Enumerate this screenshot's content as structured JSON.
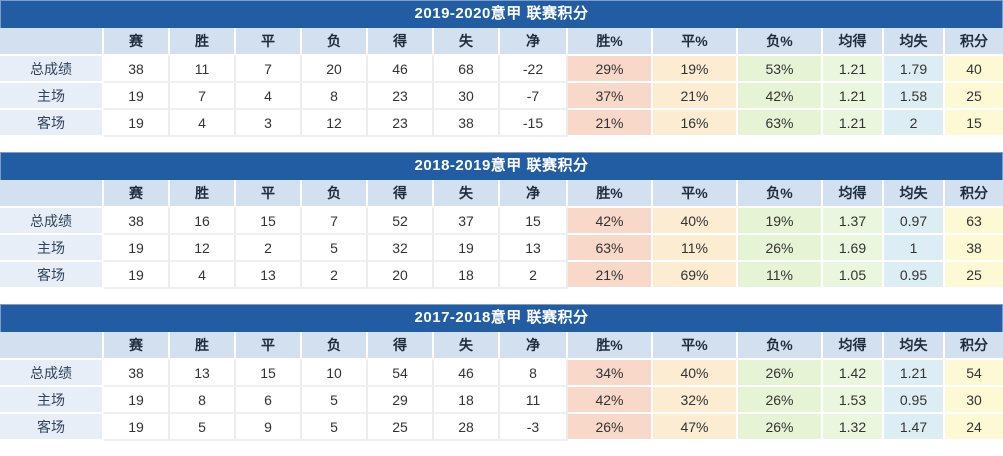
{
  "columns": [
    "",
    "赛",
    "胜",
    "平",
    "负",
    "得",
    "失",
    "净",
    "胜%",
    "平%",
    "负%",
    "均得",
    "均失",
    "积分"
  ],
  "tables": [
    {
      "title": "2019-2020意甲 联赛积分",
      "rows": [
        {
          "label": "总成绩",
          "values": [
            "38",
            "11",
            "7",
            "20",
            "46",
            "68",
            "-22",
            "29%",
            "19%",
            "53%",
            "1.21",
            "1.79",
            "40"
          ]
        },
        {
          "label": "主场",
          "values": [
            "19",
            "7",
            "4",
            "8",
            "23",
            "30",
            "-7",
            "37%",
            "21%",
            "42%",
            "1.21",
            "1.58",
            "25"
          ]
        },
        {
          "label": "客场",
          "values": [
            "19",
            "4",
            "3",
            "12",
            "23",
            "38",
            "-15",
            "21%",
            "16%",
            "63%",
            "1.21",
            "2",
            "15"
          ]
        }
      ]
    },
    {
      "title": "2018-2019意甲 联赛积分",
      "rows": [
        {
          "label": "总成绩",
          "values": [
            "38",
            "16",
            "15",
            "7",
            "52",
            "37",
            "15",
            "42%",
            "40%",
            "19%",
            "1.37",
            "0.97",
            "63"
          ]
        },
        {
          "label": "主场",
          "values": [
            "19",
            "12",
            "2",
            "5",
            "32",
            "19",
            "13",
            "63%",
            "11%",
            "26%",
            "1.69",
            "1",
            "38"
          ]
        },
        {
          "label": "客场",
          "values": [
            "19",
            "4",
            "13",
            "2",
            "20",
            "18",
            "2",
            "21%",
            "69%",
            "11%",
            "1.05",
            "0.95",
            "25"
          ]
        }
      ]
    },
    {
      "title": "2017-2018意甲 联赛积分",
      "rows": [
        {
          "label": "总成绩",
          "values": [
            "38",
            "13",
            "15",
            "10",
            "54",
            "46",
            "8",
            "34%",
            "40%",
            "26%",
            "1.42",
            "1.21",
            "54"
          ]
        },
        {
          "label": "主场",
          "values": [
            "19",
            "8",
            "6",
            "5",
            "29",
            "18",
            "11",
            "42%",
            "32%",
            "26%",
            "1.53",
            "0.95",
            "30"
          ]
        },
        {
          "label": "客场",
          "values": [
            "19",
            "5",
            "9",
            "5",
            "25",
            "28",
            "-3",
            "26%",
            "47%",
            "26%",
            "1.32",
            "1.47",
            "24"
          ]
        }
      ]
    }
  ],
  "colors": {
    "title_bar_bg": "#225da3",
    "title_text": "#ffffff",
    "header_row_bg": "#d2e0ef",
    "label_col_bg": "#e7eef7",
    "win_pct_bg": "#f8d8c9",
    "draw_pct_bg": "#fbecd2",
    "loss_pct_bg": "#e6f3d5",
    "avg_for_bg": "#eaf6dd",
    "avg_against_bg": "#dcedf4",
    "points_bg": "#fdf9d4"
  }
}
